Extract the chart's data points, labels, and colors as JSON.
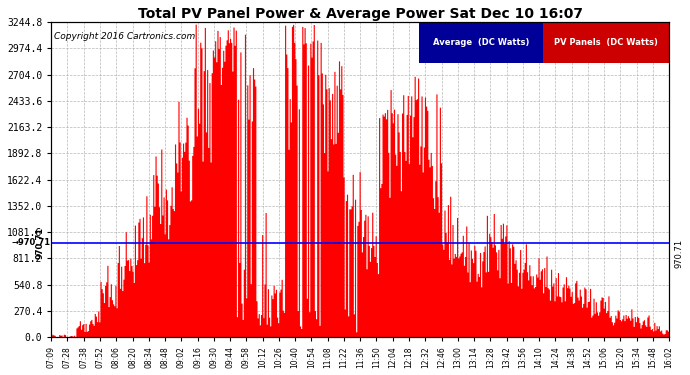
{
  "title": "Total PV Panel Power & Average Power Sat Dec 10 16:07",
  "copyright": "Copyright 2016 Cartronics.com",
  "avg_value": 970.71,
  "y_max": 3244.8,
  "y_ticks": [
    0.0,
    270.4,
    540.8,
    811.2,
    1081.6,
    1352.0,
    1622.4,
    1892.8,
    2163.2,
    2433.6,
    2704.0,
    2974.4,
    3244.8
  ],
  "x_labels": [
    "07:09",
    "07:28",
    "07:38",
    "07:52",
    "08:06",
    "08:20",
    "08:34",
    "08:48",
    "09:02",
    "09:16",
    "09:30",
    "09:44",
    "09:58",
    "10:12",
    "10:26",
    "10:40",
    "10:54",
    "11:08",
    "11:22",
    "11:36",
    "11:50",
    "12:04",
    "12:18",
    "12:32",
    "12:46",
    "13:00",
    "13:14",
    "13:28",
    "13:42",
    "13:56",
    "14:10",
    "14:24",
    "14:38",
    "14:52",
    "15:06",
    "15:20",
    "15:34",
    "15:48",
    "16:02"
  ],
  "bg_color": "#ffffff",
  "plot_bg_color": "#ffffff",
  "grid_color": "#b0b0b0",
  "fill_color": "#ff0000",
  "avg_line_color": "#0000ff",
  "title_color": "#000000",
  "legend_avg_bg": "#000099",
  "legend_pv_bg": "#cc0000",
  "legend_text_color": "#ffffff"
}
